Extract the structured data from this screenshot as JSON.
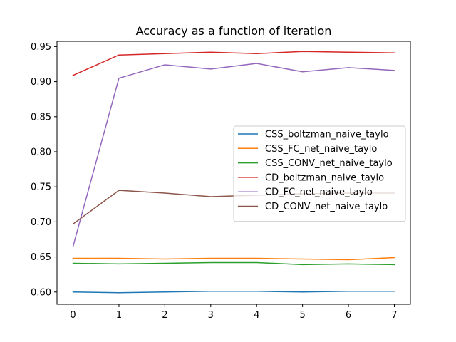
{
  "chart_data": {
    "type": "line",
    "title": "Accuracy as a function of iteration",
    "xlabel": "",
    "ylabel": "",
    "x": [
      0,
      1,
      2,
      3,
      4,
      5,
      6,
      7
    ],
    "xlim": [
      -0.35,
      7.35
    ],
    "ylim": [
      0.5825,
      0.9575
    ],
    "xticks": [
      0,
      1,
      2,
      3,
      4,
      5,
      6,
      7
    ],
    "yticks": [
      0.6,
      0.65,
      0.7,
      0.75,
      0.8,
      0.85,
      0.9,
      0.95
    ],
    "ytick_labels": [
      "0.60",
      "0.65",
      "0.70",
      "0.75",
      "0.80",
      "0.85",
      "0.90",
      "0.95"
    ],
    "grid": false,
    "legend_position": "center-right",
    "series": [
      {
        "name": "CSS_boltzman_naive_taylo",
        "color": "#1f77b4",
        "values": [
          0.6,
          0.599,
          0.6,
          0.601,
          0.601,
          0.6,
          0.601,
          0.601
        ]
      },
      {
        "name": "CSS_FC_net_naive_taylo",
        "color": "#ff7f0e",
        "values": [
          0.648,
          0.648,
          0.647,
          0.648,
          0.648,
          0.647,
          0.646,
          0.649
        ]
      },
      {
        "name": "CSS_CONV_net_naive_taylo",
        "color": "#2ca02c",
        "values": [
          0.641,
          0.64,
          0.641,
          0.642,
          0.642,
          0.639,
          0.64,
          0.639
        ]
      },
      {
        "name": "CD_boltzman_naive_taylo",
        "color": "#d62728",
        "values": [
          0.909,
          0.938,
          0.94,
          0.942,
          0.94,
          0.943,
          0.942,
          0.941
        ]
      },
      {
        "name": "CD_FC_net_naive_taylo",
        "color": "#9467bd",
        "values": [
          0.665,
          0.905,
          0.924,
          0.918,
          0.926,
          0.914,
          0.92,
          0.916
        ]
      },
      {
        "name": "CD_CONV_net_naive_taylo",
        "color": "#8c564b",
        "values": [
          0.697,
          0.745,
          0.741,
          0.736,
          0.738,
          0.74,
          0.741,
          0.741
        ]
      }
    ]
  }
}
